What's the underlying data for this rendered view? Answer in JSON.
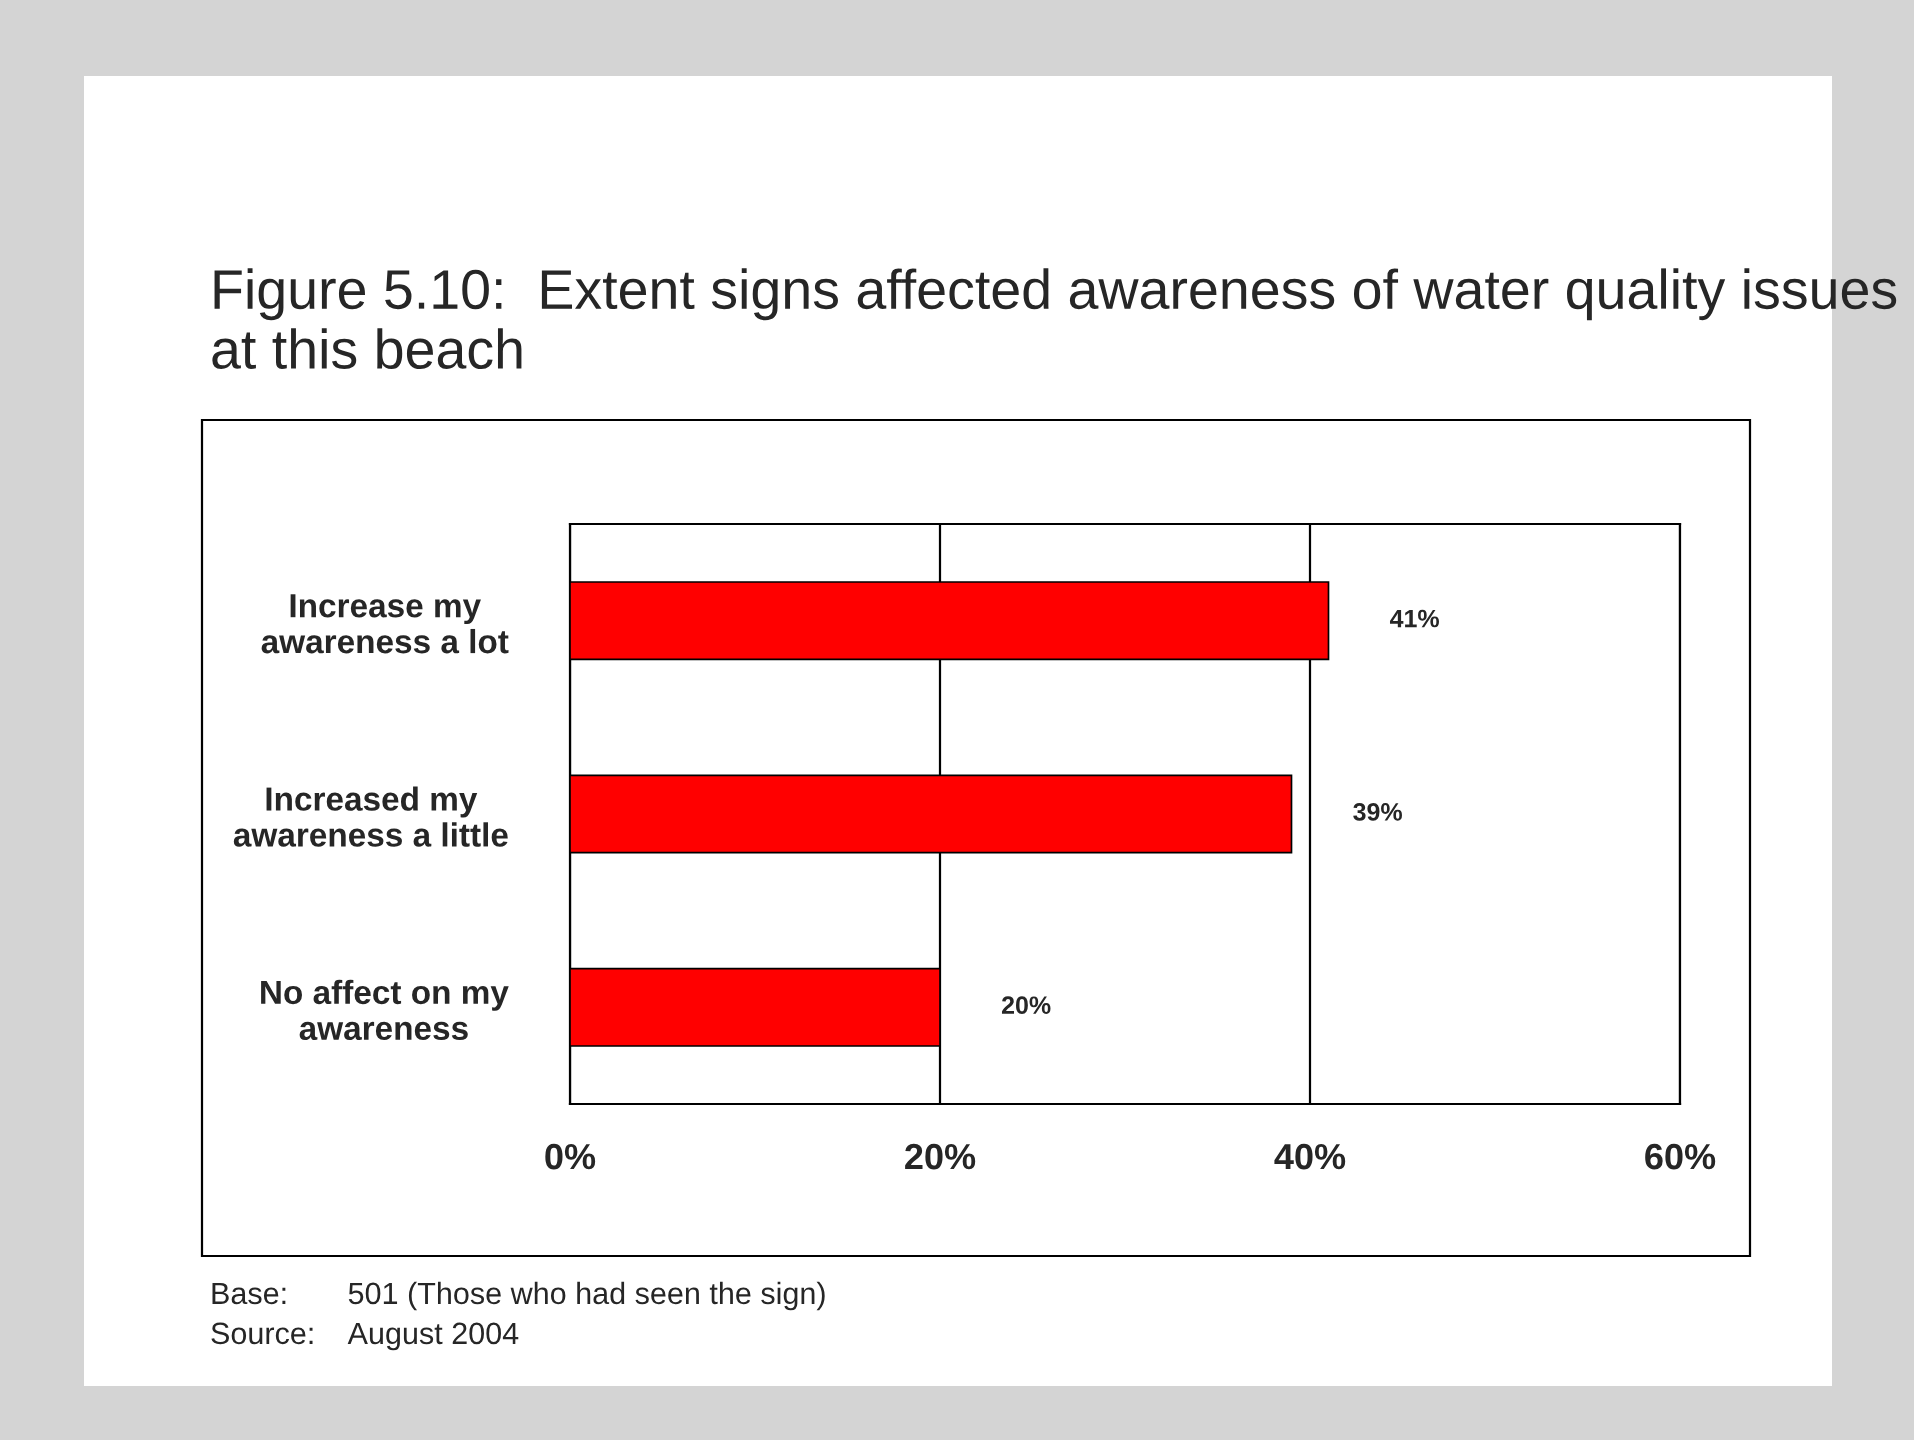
{
  "chart_data": {
    "type": "bar",
    "orientation": "horizontal",
    "title": "Figure 5.10:  Extent signs affected awareness of water quality issues at this beach",
    "categories": [
      "Increase my\nawareness a lot",
      "Increased my\nawareness a little",
      "No affect on my\nawareness"
    ],
    "values": [
      41,
      39,
      20
    ],
    "value_labels": [
      "41%",
      "39%",
      "20%"
    ],
    "color": "#ff0000",
    "xlim": [
      0,
      60
    ],
    "xticks": [
      {
        "value": 0,
        "label": "0%"
      },
      {
        "value": 20,
        "label": "20%"
      },
      {
        "value": 40,
        "label": "40%"
      },
      {
        "value": 60,
        "label": "60%"
      }
    ],
    "grid": "x",
    "annotations": [
      "Base:       501 (Those who had seen the sign)",
      "Source:    August 2004"
    ]
  }
}
